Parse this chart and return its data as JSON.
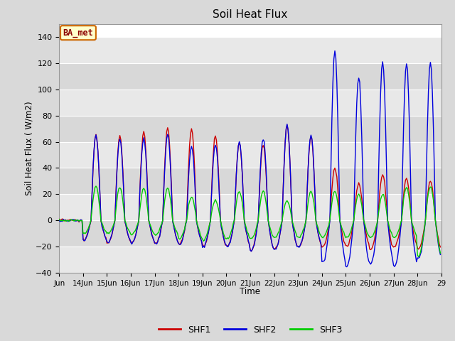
{
  "title": "Soil Heat Flux",
  "ylabel": "Soil Heat Flux (W/m2)",
  "xlabel": "Time",
  "ylim": [
    -40,
    150
  ],
  "yticks": [
    -40,
    -20,
    0,
    20,
    40,
    60,
    80,
    100,
    120,
    140
  ],
  "xtick_labels": [
    "Jun",
    "14Jun",
    "15Jun",
    "16Jun",
    "17Jun",
    "18Jun",
    "19Jun",
    "20Jun",
    "21Jun",
    "22Jun",
    "23Jun",
    "24Jun",
    "25Jun",
    "26Jun",
    "27Jun",
    "28Jun",
    "29"
  ],
  "legend_labels": [
    "SHF1",
    "SHF2",
    "SHF3"
  ],
  "legend_colors": [
    "#cc0000",
    "#0000dd",
    "#00cc00"
  ],
  "annotation_text": "BA_met",
  "annotation_bg": "#ffffcc",
  "annotation_border": "#cc6600",
  "line_colors": {
    "SHF1": "#cc0000",
    "SHF2": "#0000dd",
    "SHF3": "#00cc00"
  },
  "background_color": "#d9d9d9",
  "plot_bg": "#e8e8e8",
  "band_colors": [
    "#d3d3d3",
    "#c8c8c8"
  ],
  "shf1_peaks": [
    0,
    65,
    65,
    67,
    70,
    70,
    65,
    60,
    58,
    73,
    64,
    40,
    28,
    35,
    32,
    30
  ],
  "shf2_peaks": [
    0,
    65,
    62,
    63,
    65,
    56,
    58,
    60,
    63,
    73,
    65,
    130,
    110,
    121,
    120,
    121
  ],
  "shf3_peaks": [
    0,
    26,
    25,
    25,
    25,
    18,
    15,
    22,
    22,
    15,
    22,
    22,
    20,
    20,
    25,
    26
  ],
  "shf1_mins": [
    0,
    -15,
    -17,
    -17,
    -18,
    -18,
    -20,
    -20,
    -23,
    -22,
    -20,
    -20,
    -20,
    -22,
    -20,
    -22
  ],
  "shf2_mins": [
    0,
    -15,
    -17,
    -17,
    -18,
    -18,
    -20,
    -20,
    -23,
    -22,
    -20,
    -32,
    -35,
    -33,
    -35,
    -29
  ],
  "shf3_mins": [
    0,
    -10,
    -10,
    -11,
    -11,
    -14,
    -15,
    -14,
    -14,
    -13,
    -13,
    -13,
    -13,
    -13,
    -13,
    -27
  ],
  "n_days": 16,
  "hours_per_day": 24
}
